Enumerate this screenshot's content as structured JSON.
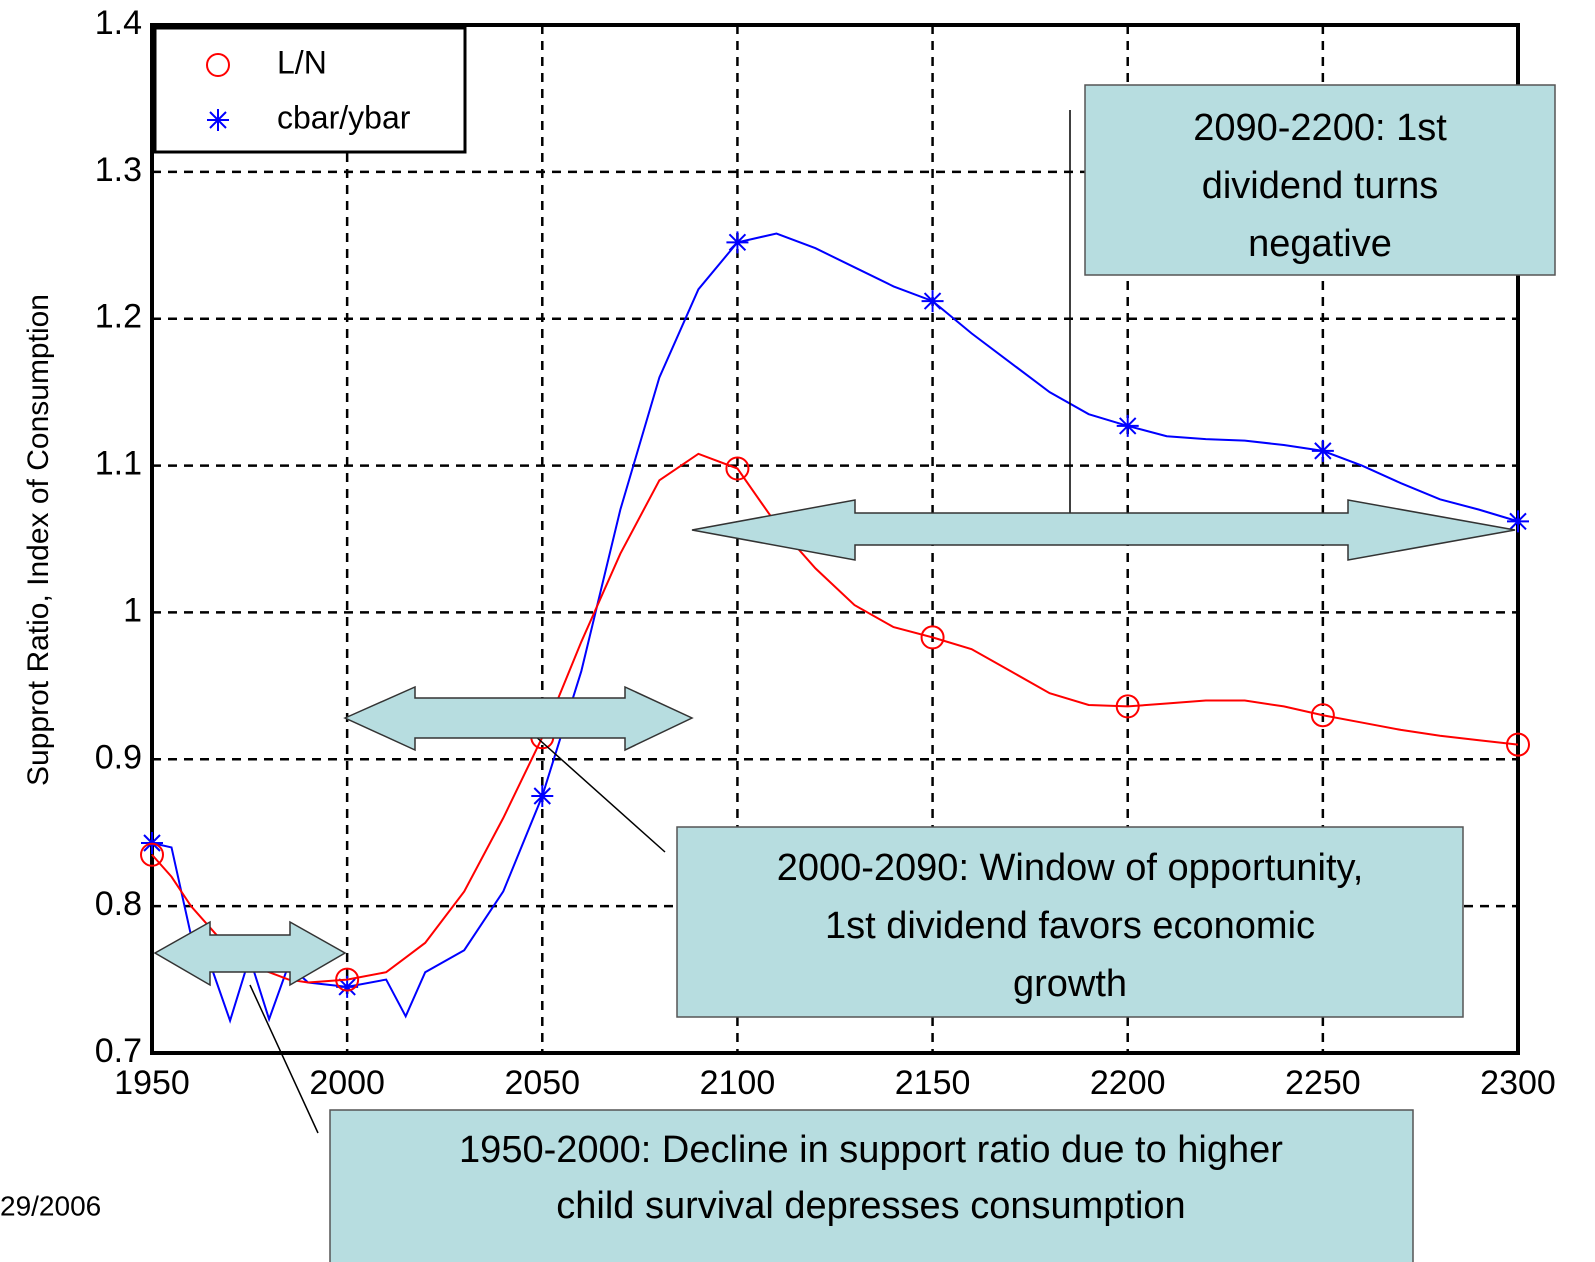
{
  "chart_data": {
    "type": "line",
    "y_label": "Supprot Ratio, Index of Consumption",
    "x": [
      1950,
      1955,
      1960,
      1965,
      1970,
      1975,
      1980,
      1985,
      1990,
      2000,
      2010,
      2015,
      2020,
      2030,
      2040,
      2050,
      2060,
      2070,
      2080,
      2090,
      2100,
      2110,
      2120,
      2130,
      2140,
      2150,
      2160,
      2170,
      2180,
      2190,
      2200,
      2210,
      2220,
      2230,
      2240,
      2250,
      2260,
      2270,
      2280,
      2290,
      2300
    ],
    "series": [
      {
        "name": "L/N",
        "color": "#ff0000",
        "marker": "circle",
        "values": [
          0.835,
          0.82,
          0.8,
          0.785,
          0.77,
          0.76,
          0.755,
          0.75,
          0.748,
          0.75,
          0.755,
          0.765,
          0.775,
          0.81,
          0.86,
          0.915,
          0.98,
          1.04,
          1.09,
          1.108,
          1.098,
          1.06,
          1.03,
          1.005,
          0.99,
          0.983,
          0.975,
          0.96,
          0.945,
          0.937,
          0.936,
          0.938,
          0.94,
          0.94,
          0.936,
          0.93,
          0.925,
          0.92,
          0.916,
          0.913,
          0.91
        ]
      },
      {
        "name": "cbar/ybar",
        "color": "#0000ff",
        "marker": "star",
        "values": [
          0.843,
          0.84,
          0.78,
          0.76,
          0.722,
          0.765,
          0.723,
          0.76,
          0.748,
          0.745,
          0.75,
          0.725,
          0.755,
          0.77,
          0.81,
          0.875,
          0.96,
          1.07,
          1.16,
          1.22,
          1.252,
          1.258,
          1.248,
          1.235,
          1.222,
          1.212,
          1.19,
          1.17,
          1.15,
          1.135,
          1.127,
          1.12,
          1.118,
          1.117,
          1.114,
          1.11,
          1.1,
          1.088,
          1.077,
          1.07,
          1.062
        ]
      }
    ],
    "xlim": [
      1950,
      2300
    ],
    "xticks": [
      1950,
      2000,
      2050,
      2100,
      2150,
      2200,
      2250,
      2300
    ],
    "ylim": [
      0.7,
      1.4
    ],
    "yticks": [
      0.7,
      0.8,
      0.9,
      1,
      1.1,
      1.2,
      1.3,
      1.4
    ],
    "grid": true,
    "legend": "upper left",
    "annotations": [
      {
        "lines": [
          "2090-2200: 1st",
          "dividend turns",
          "negative"
        ]
      },
      {
        "lines": [
          "2000-2090: Window of opportunity,",
          "1st dividend favors economic",
          "growth"
        ]
      },
      {
        "lines": [
          "1950-2000:  Decline in support ratio due to higher",
          "child survival depresses consumption"
        ]
      }
    ],
    "footer": "29/2006"
  }
}
